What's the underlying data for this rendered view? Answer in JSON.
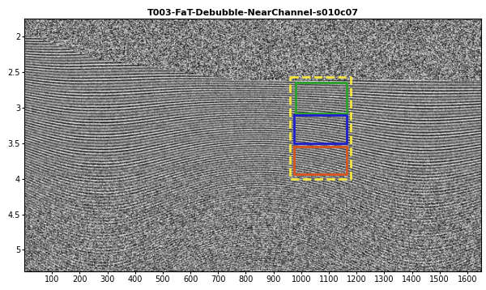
{
  "chart_data": {
    "type": "image",
    "title": "T003-FaT-Debubble-NearChannel-s010c07",
    "xlim": [
      0,
      1650
    ],
    "xticks": [
      100,
      200,
      300,
      400,
      500,
      600,
      700,
      800,
      900,
      1000,
      1100,
      1200,
      1300,
      1400,
      1500,
      1600
    ],
    "ylim": [
      5.3,
      1.75
    ],
    "yticks": [
      2,
      2.5,
      3,
      3.5,
      4,
      4.5,
      5
    ],
    "boxes": [
      {
        "color": "#f5e642",
        "line_style": "dashed",
        "x": [
          960,
          1180
        ],
        "y": [
          2.57,
          4.0
        ]
      },
      {
        "color": "#2ca02c",
        "line_style": "solid",
        "x": [
          980,
          1165
        ],
        "y": [
          2.65,
          3.08
        ]
      },
      {
        "color": "#1f1fcf",
        "line_style": "solid",
        "x": [
          975,
          1165
        ],
        "y": [
          3.1,
          3.5
        ]
      },
      {
        "color": "#d9541e",
        "line_style": "solid",
        "x": [
          975,
          1165
        ],
        "y": [
          3.55,
          3.93
        ]
      }
    ]
  }
}
